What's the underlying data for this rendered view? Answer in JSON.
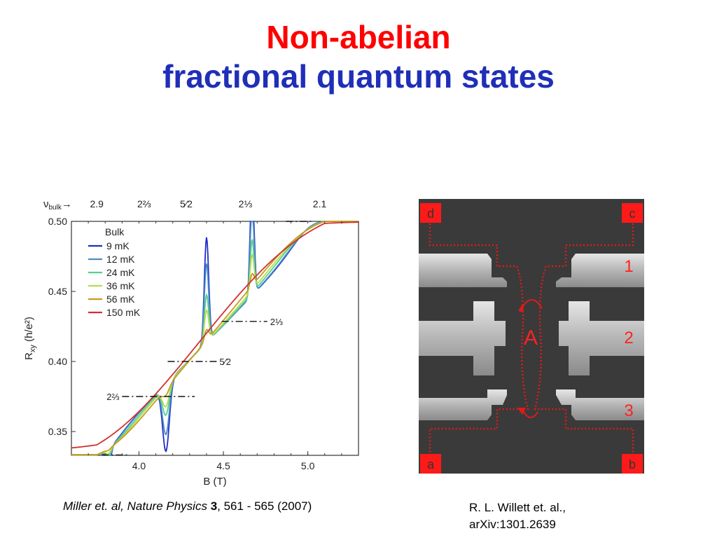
{
  "title": {
    "line1": "Non-abelian",
    "line2": "fractional quantum states"
  },
  "colors": {
    "title_red": "#ff0000",
    "title_blue": "#1f2fb8"
  },
  "chart_data": {
    "type": "line",
    "xlabel": "B (T)",
    "ylabel": "Rxy (h/e²)",
    "ylabel_main": "R",
    "ylabel_sub": "xy",
    "ylabel_rest": " (h/e²)",
    "xlim": [
      3.6,
      5.3
    ],
    "ylim": [
      0.333,
      0.5
    ],
    "x_ticks": [
      4.0,
      4.5,
      5.0
    ],
    "x_tick_labels": [
      "4.0",
      "4.5",
      "5.0"
    ],
    "y_ticks": [
      0.35,
      0.4,
      0.45,
      0.5
    ],
    "y_tick_labels": [
      "0.35",
      "0.40",
      "0.45",
      "0.50"
    ],
    "top_axis": {
      "label_symbol": "ν",
      "label_sub": "bulk",
      "arrow": "→",
      "labels": [
        {
          "b": 3.75,
          "text": "2.9"
        },
        {
          "b": 4.03,
          "text": "2⅔"
        },
        {
          "b": 4.28,
          "text": "5⁄2"
        },
        {
          "b": 4.63,
          "text": "2⅓"
        },
        {
          "b": 5.07,
          "text": "2.1"
        }
      ]
    },
    "legend": {
      "title": "Bulk",
      "placement": "top-left",
      "entries": [
        "9 mK",
        "12 mK",
        "24 mK",
        "36 mK",
        "56 mK",
        "150 mK"
      ]
    },
    "series": [
      {
        "name": "9 mK",
        "color": "#1e2fc7"
      },
      {
        "name": "12 mK",
        "color": "#4a8cc8"
      },
      {
        "name": "24 mK",
        "color": "#55d08a"
      },
      {
        "name": "36 mK",
        "color": "#b6dc52"
      },
      {
        "name": "56 mK",
        "color": "#c89a1e"
      },
      {
        "name": "150 mK",
        "color": "#d0322e"
      }
    ],
    "plateau_markers": [
      {
        "y": 0.3333,
        "x1": 3.78,
        "x2": 3.94,
        "label": ""
      },
      {
        "y": 0.375,
        "x1": 3.9,
        "x2": 4.33,
        "label": "2⅔"
      },
      {
        "y": 0.4,
        "x1": 4.17,
        "x2": 4.46,
        "label": "5⁄2"
      },
      {
        "y": 0.4286,
        "x1": 4.49,
        "x2": 4.76,
        "label": "2⅓"
      },
      {
        "y": 0.5,
        "x1": 4.87,
        "x2": 5.02,
        "label": ""
      }
    ]
  },
  "device_image": {
    "corner_labels": [
      "d",
      "c",
      "a",
      "b"
    ],
    "constriction_labels": [
      "1",
      "2",
      "3"
    ],
    "region_label": "A"
  },
  "citations": {
    "left_authors": "Miller et. al, Nature Physics ",
    "left_volume": "3",
    "left_pages": ", 561 - 565 (2007)",
    "right_line1": "R. L. Willett et. al.,",
    "right_line2": "arXiv:1301.2639"
  }
}
